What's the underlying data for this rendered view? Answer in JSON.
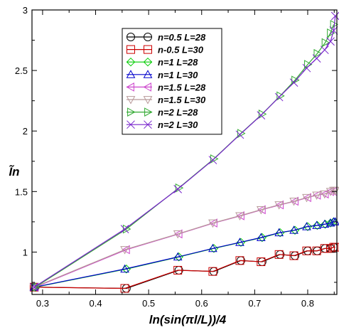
{
  "chart_data": {
    "type": "line",
    "xlabel": "ln(sin(πl/L))/4",
    "ylabel": "Ĩn",
    "xlim": [
      0.28,
      0.855
    ],
    "ylim": [
      0.65,
      3.0
    ],
    "xticks": [
      "0.3",
      "0.4",
      "0.5",
      "0.6",
      "0.7",
      "0.8"
    ],
    "xtick_values": [
      0.3,
      0.4,
      0.5,
      0.6,
      0.7,
      0.8
    ],
    "yticks": [
      "1",
      "1.5",
      "2",
      "2.5",
      "3"
    ],
    "ytick_values": [
      1,
      1.5,
      2,
      2.5,
      3
    ],
    "legend_position": "top-center",
    "series": [
      {
        "name": "n=0.5 L=28",
        "color": "#000000",
        "marker": "circle",
        "x": [
          0.286,
          0.458,
          0.557,
          0.623,
          0.674,
          0.714,
          0.748,
          0.776,
          0.8,
          0.818,
          0.833,
          0.843,
          0.849
        ],
        "y": [
          0.71,
          0.7,
          0.85,
          0.84,
          0.93,
          0.92,
          0.98,
          0.97,
          1.01,
          1.01,
          1.03,
          1.03,
          1.04
        ]
      },
      {
        "name": "n-0.5 L=30",
        "color": "#cc0000",
        "marker": "square",
        "x": [
          0.284,
          0.455,
          0.555,
          0.621,
          0.672,
          0.712,
          0.746,
          0.774,
          0.798,
          0.817,
          0.832,
          0.843,
          0.849,
          0.852
        ],
        "y": [
          0.71,
          0.7,
          0.85,
          0.84,
          0.93,
          0.92,
          0.98,
          0.97,
          1.01,
          1.01,
          1.03,
          1.03,
          1.04,
          1.04
        ]
      },
      {
        "name": "n=1 L=28",
        "color": "#00cc00",
        "marker": "diamond",
        "x": [
          0.286,
          0.458,
          0.557,
          0.623,
          0.674,
          0.714,
          0.748,
          0.776,
          0.8,
          0.818,
          0.833,
          0.843,
          0.849
        ],
        "y": [
          0.71,
          0.86,
          0.96,
          1.03,
          1.08,
          1.12,
          1.16,
          1.18,
          1.21,
          1.22,
          1.23,
          1.24,
          1.25
        ]
      },
      {
        "name": "n=1 L=30",
        "color": "#0000cc",
        "marker": "triangle-up",
        "x": [
          0.284,
          0.455,
          0.555,
          0.621,
          0.672,
          0.712,
          0.746,
          0.774,
          0.798,
          0.817,
          0.832,
          0.843,
          0.849,
          0.852
        ],
        "y": [
          0.71,
          0.86,
          0.96,
          1.03,
          1.08,
          1.12,
          1.16,
          1.18,
          1.21,
          1.22,
          1.23,
          1.24,
          1.25,
          1.25
        ]
      },
      {
        "name": "n=1.5 L=28",
        "color": "#cc44cc",
        "marker": "triangle-left",
        "x": [
          0.286,
          0.458,
          0.557,
          0.623,
          0.674,
          0.714,
          0.748,
          0.776,
          0.8,
          0.818,
          0.833,
          0.843,
          0.849
        ],
        "y": [
          0.71,
          1.02,
          1.15,
          1.24,
          1.3,
          1.35,
          1.39,
          1.42,
          1.45,
          1.47,
          1.48,
          1.5,
          1.5
        ]
      },
      {
        "name": "n=1.5 L=30",
        "color": "#b89a9a",
        "marker": "triangle-down",
        "x": [
          0.284,
          0.455,
          0.555,
          0.621,
          0.672,
          0.712,
          0.746,
          0.774,
          0.798,
          0.817,
          0.832,
          0.843,
          0.849,
          0.852
        ],
        "y": [
          0.71,
          1.02,
          1.15,
          1.24,
          1.3,
          1.35,
          1.39,
          1.42,
          1.45,
          1.47,
          1.48,
          1.5,
          1.51,
          1.51
        ]
      },
      {
        "name": "n=2 L=28",
        "color": "#33aa33",
        "marker": "triangle-right",
        "x": [
          0.286,
          0.458,
          0.557,
          0.623,
          0.674,
          0.714,
          0.748,
          0.776,
          0.8,
          0.818,
          0.833,
          0.843,
          0.849
        ],
        "y": [
          0.71,
          1.19,
          1.53,
          1.77,
          1.98,
          2.14,
          2.29,
          2.42,
          2.55,
          2.64,
          2.73,
          2.81,
          2.88
        ]
      },
      {
        "name": "n=2 L=30",
        "color": "#7722cc",
        "marker": "x",
        "x": [
          0.284,
          0.455,
          0.555,
          0.621,
          0.672,
          0.712,
          0.746,
          0.774,
          0.798,
          0.817,
          0.832,
          0.843,
          0.849,
          0.852
        ],
        "y": [
          0.71,
          1.19,
          1.52,
          1.76,
          1.97,
          2.13,
          2.28,
          2.4,
          2.52,
          2.6,
          2.67,
          2.74,
          2.83,
          2.95
        ]
      }
    ]
  }
}
